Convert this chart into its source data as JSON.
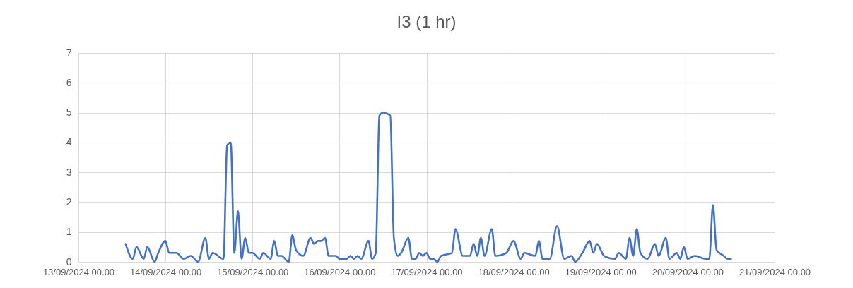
{
  "chart_data": {
    "type": "line",
    "title": "I3 (1 hr)",
    "xlim": [
      "2024-09-13T00:00",
      "2024-09-21T00:00"
    ],
    "xticks": [
      {
        "value": "2024-09-13T00:00",
        "label": "13/09/2024 00.00"
      },
      {
        "value": "2024-09-14T00:00",
        "label": "14/09/2024 00.00"
      },
      {
        "value": "2024-09-15T00:00",
        "label": "15/09/2024 00.00"
      },
      {
        "value": "2024-09-16T00:00",
        "label": "16/09/2024 00.00"
      },
      {
        "value": "2024-09-17T00:00",
        "label": "17/09/2024 00.00"
      },
      {
        "value": "2024-09-18T00:00",
        "label": "18/09/2024 00.00"
      },
      {
        "value": "2024-09-19T00:00",
        "label": "19/09/2024 00.00"
      },
      {
        "value": "2024-09-20T00:00",
        "label": "20/09/2024 00.00"
      },
      {
        "value": "2024-09-21T00:00",
        "label": "21/09/2024 00.00"
      }
    ],
    "ylim": [
      0,
      7
    ],
    "yticks": [
      0,
      1,
      2,
      3,
      4,
      5,
      6,
      7
    ],
    "grid": true,
    "marker": "none",
    "line_style": "solid",
    "series": [
      {
        "color": "#4472c4",
        "x": [
          "2024-09-13T13:00",
          "2024-09-13T15:00",
          "2024-09-13T16:00",
          "2024-09-13T18:00",
          "2024-09-13T19:00",
          "2024-09-13T21:00",
          "2024-09-13T22:00",
          "2024-09-14T00:00",
          "2024-09-14T01:00",
          "2024-09-14T03:00",
          "2024-09-14T05:00",
          "2024-09-14T07:00",
          "2024-09-14T09:00",
          "2024-09-14T11:00",
          "2024-09-14T12:00",
          "2024-09-14T13:00",
          "2024-09-14T16:00",
          "2024-09-14T17:00",
          "2024-09-14T18:00",
          "2024-09-14T19:00",
          "2024-09-14T20:00",
          "2024-09-14T21:00",
          "2024-09-14T22:00",
          "2024-09-14T23:00",
          "2024-09-15T00:00",
          "2024-09-15T02:00",
          "2024-09-15T03:00",
          "2024-09-15T05:00",
          "2024-09-15T06:00",
          "2024-09-15T07:00",
          "2024-09-15T08:00",
          "2024-09-15T10:00",
          "2024-09-15T11:00",
          "2024-09-15T12:00",
          "2024-09-15T14:00",
          "2024-09-15T16:00",
          "2024-09-15T17:00",
          "2024-09-15T18:00",
          "2024-09-15T19:00",
          "2024-09-15T20:00",
          "2024-09-15T21:00",
          "2024-09-15T23:00",
          "2024-09-16T00:00",
          "2024-09-16T01:00",
          "2024-09-16T02:00",
          "2024-09-16T03:00",
          "2024-09-16T04:00",
          "2024-09-16T05:00",
          "2024-09-16T06:00",
          "2024-09-16T08:00",
          "2024-09-16T09:00",
          "2024-09-16T10:00",
          "2024-09-16T11:00",
          "2024-09-16T12:00",
          "2024-09-16T14:00",
          "2024-09-16T15:00",
          "2024-09-16T16:00",
          "2024-09-16T17:00",
          "2024-09-16T19:00",
          "2024-09-16T20:00",
          "2024-09-16T21:00",
          "2024-09-16T22:00",
          "2024-09-16T23:00",
          "2024-09-17T00:00",
          "2024-09-17T01:00",
          "2024-09-17T02:00",
          "2024-09-17T03:00",
          "2024-09-17T04:00",
          "2024-09-17T07:00",
          "2024-09-17T08:00",
          "2024-09-17T10:00",
          "2024-09-17T12:00",
          "2024-09-17T13:00",
          "2024-09-17T14:00",
          "2024-09-17T15:00",
          "2024-09-17T16:00",
          "2024-09-17T18:00",
          "2024-09-17T19:00",
          "2024-09-17T22:00",
          "2024-09-18T00:00",
          "2024-09-18T02:00",
          "2024-09-18T03:00",
          "2024-09-18T06:00",
          "2024-09-18T07:00",
          "2024-09-18T08:00",
          "2024-09-18T10:00",
          "2024-09-18T12:00",
          "2024-09-18T14:00",
          "2024-09-18T16:00",
          "2024-09-18T17:00",
          "2024-09-18T19:00",
          "2024-09-18T21:00",
          "2024-09-18T22:00",
          "2024-09-18T23:00",
          "2024-09-19T01:00",
          "2024-09-19T04:00",
          "2024-09-19T05:00",
          "2024-09-19T07:00",
          "2024-09-19T08:00",
          "2024-09-19T09:00",
          "2024-09-19T10:00",
          "2024-09-19T11:00",
          "2024-09-19T13:00",
          "2024-09-19T15:00",
          "2024-09-19T16:00",
          "2024-09-19T18:00",
          "2024-09-19T19:00",
          "2024-09-19T21:00",
          "2024-09-19T22:00",
          "2024-09-19T23:00",
          "2024-09-20T00:00",
          "2024-09-20T02:00",
          "2024-09-20T05:00",
          "2024-09-20T06:00",
          "2024-09-20T07:00",
          "2024-09-20T08:00",
          "2024-09-20T10:00",
          "2024-09-20T11:00",
          "2024-09-20T12:00"
        ],
        "values": [
          0.6,
          0.1,
          0.5,
          0.1,
          0.5,
          0,
          0.3,
          0.7,
          0.3,
          0.3,
          0.1,
          0.2,
          0,
          0.8,
          0.1,
          0.3,
          0.1,
          3.9,
          4.0,
          0.3,
          1.7,
          0.1,
          0.8,
          0.3,
          0.3,
          0.1,
          0.3,
          0.1,
          0.7,
          0.2,
          0.2,
          0,
          0.9,
          0.4,
          0.2,
          0.8,
          0.6,
          0.7,
          0.7,
          0.8,
          0.2,
          0.2,
          0.1,
          0.1,
          0.1,
          0.2,
          0.1,
          0.2,
          0.1,
          0.7,
          0.1,
          0.3,
          4.9,
          5.0,
          4.9,
          0.8,
          0.2,
          0.3,
          0.8,
          0.1,
          0.1,
          0.3,
          0.2,
          0.3,
          0.1,
          0.1,
          0,
          0.2,
          0.3,
          1.1,
          0.2,
          0.2,
          0.6,
          0.2,
          0.8,
          0.2,
          1.1,
          0.2,
          0.3,
          0.7,
          0.1,
          0.3,
          0.2,
          0.7,
          0.1,
          0.1,
          1.2,
          0.1,
          0.2,
          0,
          0.3,
          0.7,
          0.3,
          0.6,
          0.2,
          0.1,
          0.3,
          0.1,
          0.8,
          0.2,
          1.1,
          0.3,
          0.1,
          0.6,
          0.2,
          0.8,
          0.1,
          0.3,
          0.1,
          0.5,
          0.1,
          0.2,
          0.1,
          0.1,
          1.9,
          0.4,
          0.2,
          0.1,
          0.1
        ]
      }
    ]
  }
}
